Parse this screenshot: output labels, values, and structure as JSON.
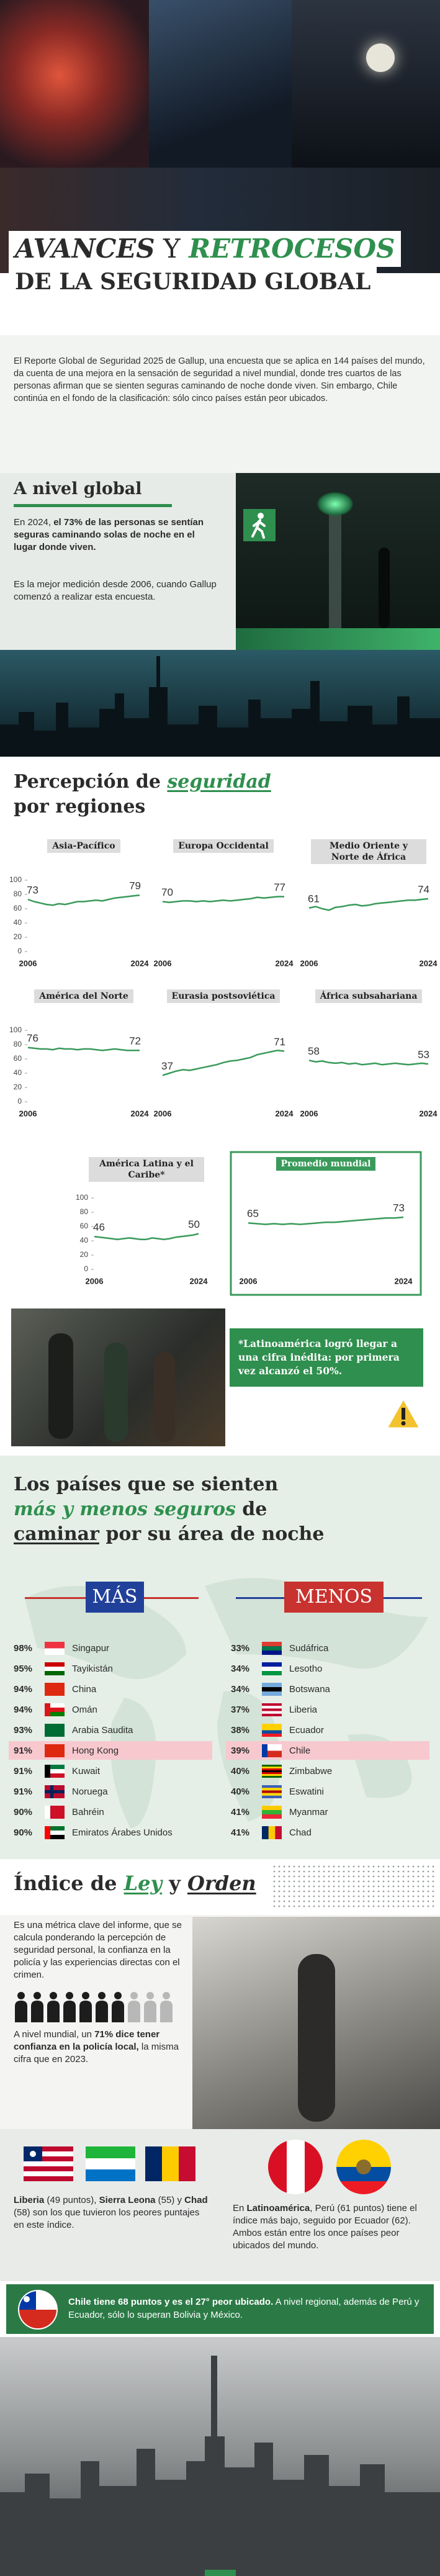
{
  "header": {
    "title_a": "AVANCES",
    "title_b": "Y",
    "title_c": "RETROCESOS",
    "title_d": "DE LA SEGURIDAD GLOBAL"
  },
  "intro": "El Reporte Global de Seguridad 2025 de Gallup, una encuesta que se aplica en 144 países del mundo, da cuenta de una mejora en la sensación de seguridad a nivel mundial, donde tres cuartos de las personas afirman que se sienten seguras caminando de noche donde viven. Sin embargo, Chile continúa en el fondo de la clasificación: sólo cinco países están peor ubicados.",
  "global": {
    "heading": "A nivel global",
    "p1": [
      "En 2024, ",
      "el 73% de las personas se sentían seguras caminando solas de noche en el lugar donde viven."
    ],
    "p2": "Es la mejor medición desde 2006, cuando Gallup comenzó a realizar esta encuesta."
  },
  "regions": {
    "heading": [
      "Percepción de ",
      "seguridad",
      "por regiones"
    ]
  },
  "chart_data": [
    {
      "type": "line",
      "title": "Asia-Pacífico",
      "color": "#3a9a5b",
      "xlim": [
        2006,
        2024
      ],
      "xticks": [
        2006,
        2024
      ],
      "ylim": [
        0,
        100
      ],
      "yticks": [
        0,
        20,
        40,
        60,
        80,
        100
      ],
      "x": [
        2006,
        2007,
        2008,
        2009,
        2010,
        2011,
        2012,
        2013,
        2014,
        2015,
        2016,
        2017,
        2018,
        2019,
        2020,
        2021,
        2022,
        2023,
        2024
      ],
      "values": [
        73,
        70,
        68,
        66,
        65,
        67,
        66,
        68,
        70,
        70,
        71,
        72,
        71,
        73,
        75,
        76,
        77,
        78,
        79
      ]
    },
    {
      "type": "line",
      "title": "Europa Occidental",
      "color": "#3a9a5b",
      "xlim": [
        2006,
        2024
      ],
      "xticks": [
        2006,
        2024
      ],
      "ylim": [
        0,
        100
      ],
      "x": [
        2006,
        2007,
        2008,
        2009,
        2010,
        2011,
        2012,
        2013,
        2014,
        2015,
        2016,
        2017,
        2018,
        2019,
        2020,
        2021,
        2022,
        2023,
        2024
      ],
      "values": [
        70,
        69,
        70,
        71,
        71,
        70,
        71,
        70,
        71,
        72,
        71,
        72,
        73,
        74,
        76,
        75,
        76,
        77,
        77
      ]
    },
    {
      "type": "line",
      "title": "Medio Oriente y Norte de África",
      "color": "#3a9a5b",
      "xlim": [
        2006,
        2024
      ],
      "xticks": [
        2006,
        2024
      ],
      "ylim": [
        0,
        100
      ],
      "x": [
        2006,
        2007,
        2008,
        2009,
        2010,
        2011,
        2012,
        2013,
        2014,
        2015,
        2016,
        2017,
        2018,
        2019,
        2020,
        2021,
        2022,
        2023,
        2024
      ],
      "values": [
        61,
        63,
        60,
        58,
        62,
        63,
        65,
        66,
        64,
        65,
        67,
        68,
        69,
        70,
        71,
        72,
        72,
        73,
        74
      ]
    },
    {
      "type": "line",
      "title": "América del Norte",
      "color": "#3a9a5b",
      "xlim": [
        2006,
        2024
      ],
      "xticks": [
        2006,
        2024
      ],
      "ylim": [
        0,
        100
      ],
      "yticks": [
        0,
        20,
        40,
        60,
        80,
        100
      ],
      "x": [
        2006,
        2007,
        2008,
        2009,
        2010,
        2011,
        2012,
        2013,
        2014,
        2015,
        2016,
        2017,
        2018,
        2019,
        2020,
        2021,
        2022,
        2023,
        2024
      ],
      "values": [
        76,
        75,
        74,
        74,
        73,
        75,
        74,
        74,
        73,
        74,
        74,
        73,
        72,
        73,
        74,
        73,
        72,
        72,
        72
      ]
    },
    {
      "type": "line",
      "title": "Eurasia postsoviética",
      "color": "#3a9a5b",
      "xlim": [
        2006,
        2024
      ],
      "xticks": [
        2006,
        2024
      ],
      "ylim": [
        0,
        100
      ],
      "x": [
        2006,
        2007,
        2008,
        2009,
        2010,
        2011,
        2012,
        2013,
        2014,
        2015,
        2016,
        2017,
        2018,
        2019,
        2020,
        2021,
        2022,
        2023,
        2024
      ],
      "values": [
        37,
        40,
        43,
        45,
        44,
        46,
        48,
        50,
        52,
        55,
        57,
        58,
        60,
        62,
        66,
        68,
        70,
        72,
        71
      ]
    },
    {
      "type": "line",
      "title": "África subsahariana",
      "color": "#3a9a5b",
      "xlim": [
        2006,
        2024
      ],
      "xticks": [
        2006,
        2024
      ],
      "ylim": [
        0,
        100
      ],
      "x": [
        2006,
        2007,
        2008,
        2009,
        2010,
        2011,
        2012,
        2013,
        2014,
        2015,
        2016,
        2017,
        2018,
        2019,
        2020,
        2021,
        2022,
        2023,
        2024
      ],
      "values": [
        58,
        56,
        57,
        55,
        54,
        55,
        53,
        54,
        52,
        53,
        54,
        52,
        53,
        54,
        53,
        52,
        53,
        54,
        53
      ]
    },
    {
      "type": "line",
      "title": "América Latina y el Caribe*",
      "color": "#3a9a5b",
      "xlim": [
        2006,
        2024
      ],
      "xticks": [
        2006,
        2024
      ],
      "ylim": [
        0,
        100
      ],
      "yticks": [
        0,
        20,
        40,
        60,
        80,
        100
      ],
      "x": [
        2006,
        2007,
        2008,
        2009,
        2010,
        2011,
        2012,
        2013,
        2014,
        2015,
        2016,
        2017,
        2018,
        2019,
        2020,
        2021,
        2022,
        2023,
        2024
      ],
      "values": [
        46,
        45,
        44,
        43,
        42,
        43,
        44,
        43,
        42,
        42,
        44,
        43,
        42,
        43,
        45,
        46,
        47,
        48,
        50
      ]
    },
    {
      "type": "line",
      "title": "Promedio mundial",
      "color": "#3a9a5b",
      "xlim": [
        2006,
        2024
      ],
      "xticks": [
        2006,
        2024
      ],
      "ylim": [
        0,
        100
      ],
      "x": [
        2006,
        2007,
        2008,
        2009,
        2010,
        2011,
        2012,
        2013,
        2014,
        2015,
        2016,
        2017,
        2018,
        2019,
        2020,
        2021,
        2022,
        2023,
        2024
      ],
      "values": [
        65,
        64,
        63,
        64,
        63,
        64,
        63,
        64,
        65,
        66,
        66,
        67,
        68,
        69,
        70,
        71,
        72,
        72,
        73
      ]
    }
  ],
  "callout": "*Latinoamérica logró llegar a una cifra inédita: por primera vez alcanzó el 50%.",
  "countries": {
    "heading": [
      "Los países que se sienten",
      "más y menos seguros",
      " de",
      "caminar",
      " por su área de noche"
    ],
    "more": {
      "label": "MÁS",
      "rows": [
        [
          "98%",
          "Singapur"
        ],
        [
          "95%",
          "Tayikistán"
        ],
        [
          "94%",
          "China"
        ],
        [
          "94%",
          "Omán"
        ],
        [
          "93%",
          "Arabia Saudita"
        ],
        [
          "91%",
          "Hong Kong"
        ],
        [
          "91%",
          "Kuwait"
        ],
        [
          "91%",
          "Noruega"
        ],
        [
          "90%",
          "Bahréin"
        ],
        [
          "90%",
          "Emiratos Árabes Unidos"
        ]
      ]
    },
    "less": {
      "label": "MENOS",
      "rows": [
        [
          "33%",
          "Sudáfrica"
        ],
        [
          "34%",
          "Lesotho"
        ],
        [
          "34%",
          "Botswana"
        ],
        [
          "37%",
          "Liberia"
        ],
        [
          "38%",
          "Ecuador"
        ],
        [
          "39%",
          "Chile"
        ],
        [
          "40%",
          "Zimbabwe"
        ],
        [
          "40%",
          "Eswatini"
        ],
        [
          "41%",
          "Myanmar"
        ],
        [
          "41%",
          "Chad"
        ]
      ]
    }
  },
  "index": {
    "heading": [
      "Índice de ",
      "Ley",
      " y ",
      "Orden"
    ],
    "p1": "Es una métrica clave del informe, que se calcula ponderando la percepción de seguridad personal, la confianza en la policía y las experiencias directas con el crimen.",
    "p2": [
      "A nivel mundial, un ",
      "71% dice tener confianza en la policía local,",
      " la misma cifra que en 2023."
    ],
    "worst": [
      "Liberia",
      " (49 puntos), ",
      "Sierra Leona",
      " (55) y ",
      "Chad",
      " (58) son los que tuvieron los peores puntajes en este índice."
    ],
    "latam": [
      "En ",
      "Latinoamérica",
      ", Perú (61 puntos) tiene el índice más bajo, seguido por Ecuador (62). Ambos están entre los once países peor ubicados del mundo."
    ]
  },
  "chile": [
    "Chile tiene 68 puntos y es el 27° peor ubicado.",
    " A nivel regional, además de Perú y Ecuador, sólo lo superan Bolivia y México."
  ]
}
